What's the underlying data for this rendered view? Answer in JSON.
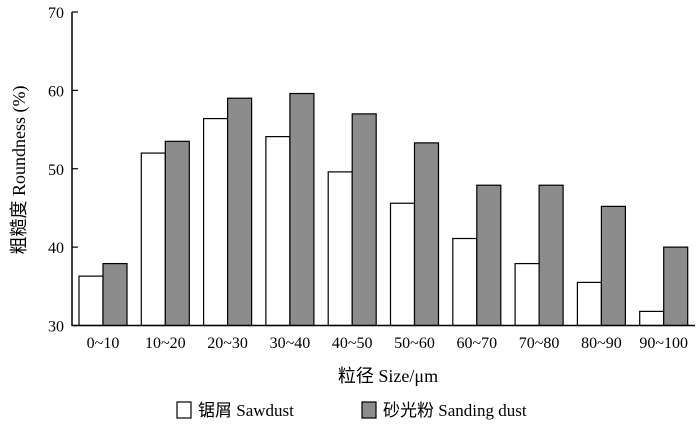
{
  "chart_data": {
    "type": "bar",
    "categories": [
      "0~10",
      "10~20",
      "20~30",
      "30~40",
      "40~50",
      "50~60",
      "60~70",
      "70~80",
      "80~90",
      "90~100"
    ],
    "series": [
      {
        "name": "锯屑  Sawdust",
        "color": "#ffffff",
        "values": [
          36.3,
          52.0,
          56.4,
          54.1,
          49.6,
          45.6,
          41.1,
          37.9,
          35.5,
          31.8
        ]
      },
      {
        "name": "砂光粉  Sanding dust",
        "color": "#8c8c8c",
        "values": [
          37.9,
          53.5,
          59.0,
          59.6,
          57.0,
          53.3,
          47.9,
          47.9,
          45.2,
          40.0
        ]
      }
    ],
    "xlabel": "粒径  Size/μm",
    "ylabel": "粗糙度  Roundness (%)",
    "ylim": [
      30,
      70
    ],
    "yticks": [
      30,
      40,
      50,
      60,
      70
    ],
    "grid": false,
    "legend_position": "bottom"
  }
}
